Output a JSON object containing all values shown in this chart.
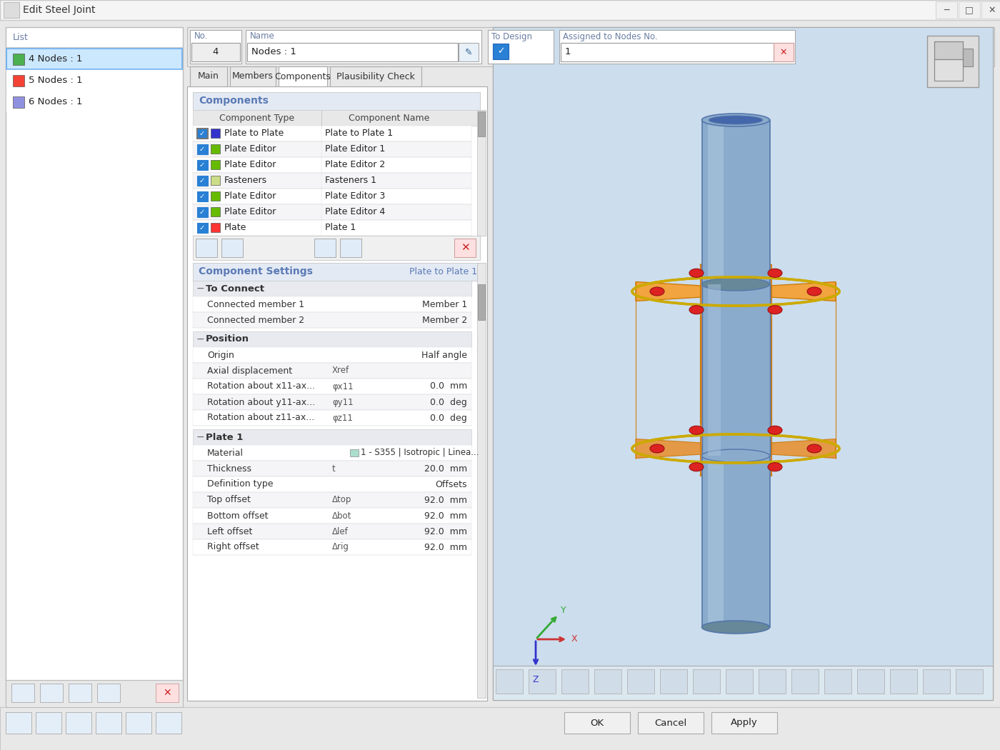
{
  "title": "Edit Steel Joint",
  "window_bg": "#e8e8e8",
  "titlebar_bg": "#f5f5f5",
  "white": "#ffffff",
  "light_blue_selected": "#cce8ff",
  "header_color": "#6b7fa3",
  "blue_check": "#2980d4",
  "section_header_bg": "#e4eaf4",
  "section_header_text": "#5a7ab5",
  "list_items": [
    {
      "label": "4 Nodes : 1",
      "color": "#4caf50",
      "selected": true
    },
    {
      "label": "5 Nodes : 1",
      "color": "#f44336",
      "selected": false
    },
    {
      "label": "6 Nodes : 1",
      "color": "#9090e0",
      "selected": false
    }
  ],
  "no_value": "4",
  "name_value": "Nodes : 1",
  "tabs": [
    "Main",
    "Members",
    "Components",
    "Plausibility Check"
  ],
  "active_tab": "Components",
  "components_header": "Components",
  "component_rows": [
    {
      "checked": true,
      "color": "#3333cc",
      "type": "Plate to Plate",
      "name": "Plate to Plate 1"
    },
    {
      "checked": true,
      "color": "#66bb00",
      "type": "Plate Editor",
      "name": "Plate Editor 1"
    },
    {
      "checked": true,
      "color": "#66bb00",
      "type": "Plate Editor",
      "name": "Plate Editor 2"
    },
    {
      "checked": true,
      "color": "#ccdd88",
      "type": "Fasteners",
      "name": "Fasteners 1"
    },
    {
      "checked": true,
      "color": "#66bb00",
      "type": "Plate Editor",
      "name": "Plate Editor 3"
    },
    {
      "checked": true,
      "color": "#66bb00",
      "type": "Plate Editor",
      "name": "Plate Editor 4"
    },
    {
      "checked": true,
      "color": "#ff3333",
      "type": "Plate",
      "name": "Plate 1"
    }
  ],
  "comp_settings_header": "Component Settings",
  "comp_settings_right": "Plate to Plate 1",
  "settings_sections": [
    {
      "name": "To Connect",
      "rows": [
        {
          "label": "Connected member 1",
          "symbol": "",
          "value": "Member 1"
        },
        {
          "label": "Connected member 2",
          "symbol": "",
          "value": "Member 2"
        }
      ]
    },
    {
      "name": "Position",
      "rows": [
        {
          "label": "Origin",
          "symbol": "",
          "value": "Half angle"
        },
        {
          "label": "Axial displacement",
          "symbol": "Xref",
          "value": ""
        },
        {
          "label": "Rotation about x11-ax...",
          "symbol": "φx11",
          "value": "0.0  mm"
        },
        {
          "label": "Rotation about y11-ax...",
          "symbol": "φy11",
          "value": "0.0  deg"
        },
        {
          "label": "Rotation about z11-ax...",
          "symbol": "φz11",
          "value": "0.0  deg"
        }
      ]
    },
    {
      "name": "Plate 1",
      "rows": [
        {
          "label": "Material",
          "symbol": "",
          "value": "1 - S355 | Isotropic | Linea..."
        },
        {
          "label": "Thickness",
          "symbol": "t",
          "value": "20.0  mm"
        },
        {
          "label": "Definition type",
          "symbol": "",
          "value": "Offsets"
        },
        {
          "label": "Top offset",
          "symbol": "Δtop",
          "value": "92.0  mm"
        },
        {
          "label": "Bottom offset",
          "symbol": "Δbot",
          "value": "92.0  mm"
        },
        {
          "label": "Left offset",
          "symbol": "Δlef",
          "value": "92.0  mm"
        },
        {
          "label": "Right offset",
          "symbol": "Δrig",
          "value": "92.0  mm"
        }
      ]
    }
  ],
  "bottom_buttons": [
    "OK",
    "Cancel",
    "Apply"
  ],
  "to_design_checked": true,
  "cyl_color": "#8aabcc",
  "cyl_light": "#a8c4dd",
  "cyl_dark": "#5577aa",
  "flange_color": "#f5a030",
  "flange_dark": "#cc7700",
  "bolt_color": "#dd2222",
  "ring_color": "#ccaa00"
}
